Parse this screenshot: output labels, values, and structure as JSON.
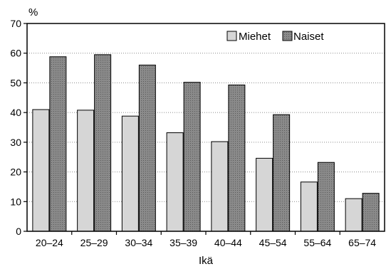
{
  "chart_data": {
    "type": "bar",
    "title": "",
    "ylabel": "%",
    "xlabel": "Ikä",
    "ylim": [
      0,
      70
    ],
    "yticks": [
      0,
      10,
      20,
      30,
      40,
      50,
      60,
      70
    ],
    "grid": "horizontal dotted",
    "legend_position": "top-right",
    "categories": [
      "20–24",
      "25–29",
      "30–34",
      "35–39",
      "40–44",
      "45–54",
      "55–64",
      "65–74"
    ],
    "series": [
      {
        "name": "Miehet",
        "color": "#d6d6d6",
        "values": [
          41,
          40.8,
          38.8,
          33.2,
          30.2,
          24.6,
          16.6,
          11
        ]
      },
      {
        "name": "Naiset",
        "color": "#8a8a8a",
        "values": [
          58.8,
          59.5,
          56,
          50.2,
          49.3,
          39.3,
          23.2,
          12.8
        ]
      }
    ]
  }
}
